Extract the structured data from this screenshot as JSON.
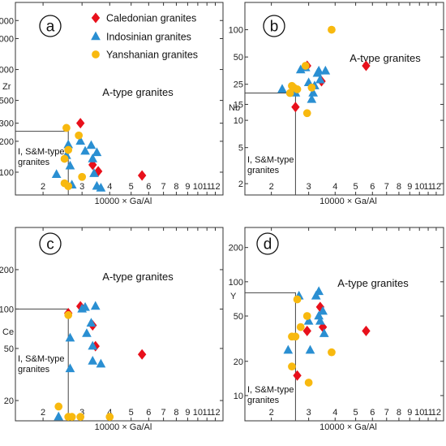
{
  "colors": {
    "caledonian": "#e8101b",
    "indosinian": "#2a8fd2",
    "yanshanian": "#f8b90f"
  },
  "legend": [
    {
      "key": "caledonian",
      "label": "Caledonian granites",
      "marker": "diamond"
    },
    {
      "key": "indosinian",
      "label": "Indosinian granites",
      "marker": "triangle"
    },
    {
      "key": "yanshanian",
      "label": "Yanshanian granites",
      "marker": "circle"
    }
  ],
  "chart_data": [
    {
      "type": "scatter",
      "panel": "a",
      "xlabel": "10000 × Ga/Al",
      "ylabel": "Zr",
      "xscale": "log",
      "yscale": "log",
      "xlim": [
        1.5,
        13
      ],
      "ylim": [
        60,
        4500
      ],
      "x_ticks": [
        2,
        3,
        4,
        5,
        6,
        7,
        8,
        9,
        10,
        11,
        12
      ],
      "y_ticks": [
        100,
        200,
        300,
        500,
        1000,
        2000,
        3000
      ],
      "field_labels": {
        "upper": "A-type granites",
        "lower_line1": "I, S&M-type",
        "lower_line2": "granites"
      },
      "boundary": {
        "x": 2.6,
        "y": 250
      },
      "series": [
        {
          "key": "caledonian",
          "points": [
            [
              2.95,
              300
            ],
            [
              3.35,
              118
            ],
            [
              3.55,
              102
            ],
            [
              5.6,
              93
            ]
          ]
        },
        {
          "key": "indosinian",
          "points": [
            [
              2.3,
              95
            ],
            [
              2.6,
              185
            ],
            [
              2.65,
              115
            ],
            [
              2.95,
              200
            ],
            [
              3.1,
              160
            ],
            [
              3.3,
              182
            ],
            [
              3.35,
              135
            ],
            [
              3.4,
              97
            ],
            [
              3.5,
              155
            ],
            [
              3.5,
              73
            ],
            [
              3.65,
              70
            ],
            [
              2.7,
              75
            ],
            [
              2.55,
              145
            ]
          ]
        },
        {
          "key": "yanshanian",
          "points": [
            [
              2.55,
              270
            ],
            [
              2.6,
              165
            ],
            [
              2.5,
              135
            ],
            [
              2.5,
              78
            ],
            [
              2.6,
              73
            ],
            [
              2.9,
              228
            ],
            [
              3.0,
              90
            ]
          ]
        }
      ]
    },
    {
      "type": "scatter",
      "panel": "b",
      "xlabel": "10000 × Ga/Al",
      "ylabel": "Nb",
      "xscale": "log",
      "yscale": "log",
      "xlim": [
        1.5,
        13
      ],
      "ylim": [
        1.5,
        200
      ],
      "x_ticks": [
        2,
        3,
        4,
        5,
        6,
        7,
        8,
        9,
        10,
        11,
        12
      ],
      "y_ticks": [
        2,
        5,
        10,
        15,
        25,
        50,
        100
      ],
      "field_labels": {
        "upper": "A-type granites",
        "lower_line1": "I, S&M-type",
        "lower_line2": "granites"
      },
      "boundary": {
        "x": 2.6,
        "y": 20
      },
      "series": [
        {
          "key": "caledonian",
          "points": [
            [
              2.95,
              40
            ],
            [
              2.6,
              14
            ],
            [
              3.45,
              27
            ],
            [
              5.6,
              40
            ]
          ]
        },
        {
          "key": "indosinian",
          "points": [
            [
              2.25,
              22
            ],
            [
              2.75,
              36
            ],
            [
              2.9,
              38
            ],
            [
              3.0,
              26
            ],
            [
              3.15,
              20
            ],
            [
              3.2,
              24
            ],
            [
              3.3,
              33
            ],
            [
              3.35,
              35
            ],
            [
              3.4,
              28
            ],
            [
              3.6,
              35
            ],
            [
              2.6,
              20
            ],
            [
              3.1,
              17
            ]
          ]
        },
        {
          "key": "yanshanian",
          "points": [
            [
              2.45,
              20
            ],
            [
              2.5,
              24
            ],
            [
              2.55,
              23
            ],
            [
              2.65,
              22
            ],
            [
              2.9,
              40
            ],
            [
              2.95,
              12
            ],
            [
              3.1,
              23
            ],
            [
              3.85,
              100
            ]
          ]
        }
      ]
    },
    {
      "type": "scatter",
      "panel": "c",
      "xlabel": "10000 × Ga/Al",
      "ylabel": "Ce",
      "xscale": "log",
      "yscale": "log",
      "xlim": [
        1.5,
        13
      ],
      "ylim": [
        14,
        420
      ],
      "x_ticks": [
        2,
        3,
        4,
        5,
        6,
        7,
        8,
        9,
        10,
        11,
        12
      ],
      "y_ticks": [
        20,
        50,
        100,
        200
      ],
      "field_labels": {
        "upper": "A-type granites",
        "lower_line1": "I, S&M-type",
        "lower_line2": "granites"
      },
      "boundary": {
        "x": 2.6,
        "y": 100
      },
      "series": [
        {
          "key": "caledonian",
          "points": [
            [
              2.6,
              93
            ],
            [
              2.95,
              105
            ],
            [
              3.35,
              75
            ],
            [
              3.45,
              52
            ],
            [
              5.6,
              45
            ]
          ]
        },
        {
          "key": "indosinian",
          "points": [
            [
              2.35,
              15
            ],
            [
              2.65,
              60
            ],
            [
              2.65,
              35
            ],
            [
              3.0,
              100
            ],
            [
              3.1,
              103
            ],
            [
              3.15,
              65
            ],
            [
              3.3,
              78
            ],
            [
              3.35,
              52
            ],
            [
              3.35,
              40
            ],
            [
              3.65,
              38
            ],
            [
              3.45,
              105
            ]
          ]
        },
        {
          "key": "yanshanian",
          "points": [
            [
              2.35,
              18
            ],
            [
              2.6,
              15
            ],
            [
              2.7,
              15
            ],
            [
              2.95,
              15
            ],
            [
              4.0,
              15
            ],
            [
              2.6,
              90
            ]
          ]
        }
      ]
    },
    {
      "type": "scatter",
      "panel": "d",
      "xlabel": "10000 × Ga/Al",
      "ylabel": "Y",
      "xscale": "log",
      "yscale": "log",
      "xlim": [
        1.5,
        13
      ],
      "ylim": [
        6,
        300
      ],
      "x_ticks": [
        2,
        3,
        4,
        5,
        6,
        7,
        8,
        9,
        10,
        11,
        12
      ],
      "y_ticks": [
        10,
        20,
        50,
        100,
        200
      ],
      "field_labels": {
        "upper": "A-type granites",
        "lower_line1": "I, S&M-type",
        "lower_line2": "granites"
      },
      "boundary": {
        "x": 2.6,
        "y": 80
      },
      "series": [
        {
          "key": "caledonian",
          "points": [
            [
              2.65,
              15
            ],
            [
              2.95,
              37
            ],
            [
              3.4,
              60
            ],
            [
              3.5,
              40
            ],
            [
              5.6,
              37
            ]
          ]
        },
        {
          "key": "indosinian",
          "points": [
            [
              2.4,
              25
            ],
            [
              2.7,
              75
            ],
            [
              3.05,
              25
            ],
            [
              3.25,
              75
            ],
            [
              3.35,
              82
            ],
            [
              3.35,
              50
            ],
            [
              3.4,
              45
            ],
            [
              3.5,
              55
            ],
            [
              3.55,
              35
            ],
            [
              3.0,
              45
            ]
          ]
        },
        {
          "key": "yanshanian",
          "points": [
            [
              2.5,
              18
            ],
            [
              2.5,
              33
            ],
            [
              2.6,
              33
            ],
            [
              2.65,
              70
            ],
            [
              2.75,
              40
            ],
            [
              2.95,
              50
            ],
            [
              3.0,
              13
            ],
            [
              3.85,
              24
            ]
          ]
        }
      ]
    }
  ]
}
